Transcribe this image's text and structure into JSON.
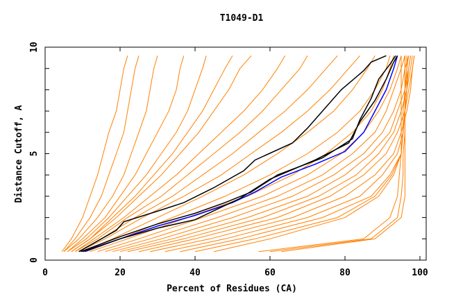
{
  "chart_data": {
    "type": "line",
    "title": "T1049-D1",
    "xlabel": "Percent of Residues (CA)",
    "ylabel": "Distance Cutoff, A",
    "xlim": [
      0,
      100
    ],
    "ylim": [
      0,
      10
    ],
    "xticks": [
      "0",
      "20",
      "40",
      "60",
      "80",
      "100"
    ],
    "yticks": [
      "0",
      "5",
      "10"
    ],
    "grid": false,
    "cutoffs": [
      0.4,
      1,
      2,
      3,
      4,
      5,
      6,
      7,
      8,
      9,
      9.6
    ],
    "background_series_color": "#ff8000",
    "background_series": [
      [
        4.5,
        7,
        10,
        12,
        14,
        15.5,
        17,
        19,
        20,
        21,
        22
      ],
      [
        5,
        8,
        12,
        15,
        17,
        19,
        21,
        22,
        23,
        24,
        25
      ],
      [
        5,
        9,
        14,
        18,
        21,
        23,
        25,
        27,
        28,
        29,
        30
      ],
      [
        6,
        10,
        16,
        20,
        24,
        27,
        30,
        33,
        35,
        36,
        37
      ],
      [
        6,
        11,
        17,
        22,
        27,
        31,
        35,
        38,
        40,
        42,
        43
      ],
      [
        7,
        12,
        18,
        24,
        29,
        34,
        38,
        42,
        45,
        48,
        50
      ],
      [
        7,
        12,
        19,
        25,
        31,
        36,
        41,
        45,
        49,
        52,
        55
      ],
      [
        8,
        13,
        21,
        28,
        35,
        41,
        47,
        53,
        58,
        62,
        64
      ],
      [
        8,
        14,
        22,
        31,
        38,
        45,
        52,
        58,
        63,
        68,
        70
      ],
      [
        9,
        15,
        24,
        34,
        42,
        50,
        57,
        64,
        70,
        75,
        78
      ],
      [
        9,
        16,
        26,
        37,
        47,
        55,
        63,
        70,
        76,
        81,
        84
      ],
      [
        10,
        18,
        30,
        42,
        53,
        62,
        70,
        77,
        82,
        86,
        88
      ],
      [
        11,
        20,
        34,
        48,
        60,
        70,
        78,
        84,
        88,
        91,
        92
      ],
      [
        12,
        22,
        38,
        54,
        66,
        75,
        82,
        87,
        90,
        92,
        93
      ],
      [
        14,
        25,
        42,
        58,
        70,
        79,
        85,
        89,
        92,
        94,
        95
      ],
      [
        16,
        28,
        46,
        62,
        74,
        82,
        88,
        91,
        93,
        95,
        96
      ],
      [
        18,
        31,
        50,
        66,
        77,
        85,
        90,
        93,
        95,
        96,
        97
      ],
      [
        20,
        34,
        54,
        70,
        80,
        87,
        92,
        94,
        96,
        97,
        97.5
      ],
      [
        22,
        37,
        58,
        73,
        83,
        89,
        93,
        95,
        96.5,
        97.5,
        98
      ],
      [
        25,
        40,
        62,
        76,
        85,
        91,
        94,
        96,
        97,
        98,
        98.5
      ],
      [
        28,
        44,
        66,
        80,
        88,
        93,
        95,
        96.5,
        97.5,
        98,
        98.5
      ],
      [
        32,
        48,
        70,
        84,
        90,
        94,
        95.5,
        96,
        96.5,
        97,
        97.5
      ],
      [
        36,
        52,
        74,
        87,
        92,
        95,
        95.5,
        96,
        96.5,
        96.5,
        97
      ],
      [
        40,
        56,
        78,
        88,
        92.5,
        95,
        95.5,
        96,
        96,
        96.5,
        96.5
      ],
      [
        45,
        60,
        80,
        89,
        93,
        95,
        95.5,
        95.5,
        96,
        96,
        96
      ],
      [
        57,
        85,
        92,
        94,
        94.5,
        95,
        95,
        95,
        95,
        95,
        95
      ],
      [
        60,
        87,
        94,
        95,
        95.5,
        95.5,
        96,
        96,
        96,
        96,
        96
      ],
      [
        63,
        88,
        95,
        96,
        96,
        96,
        96,
        96,
        96.5,
        96.5,
        96.5
      ]
    ],
    "highlight_series": [
      {
        "color": "#0000ff",
        "points": [
          [
            10.5,
            0.4
          ],
          [
            20,
            1
          ],
          [
            30,
            1.6
          ],
          [
            40,
            2.1
          ],
          [
            50,
            2.7
          ],
          [
            56,
            3.2
          ],
          [
            63,
            3.9
          ],
          [
            72,
            4.5
          ],
          [
            80,
            5.1
          ],
          [
            85,
            6
          ],
          [
            88,
            7
          ],
          [
            91,
            8
          ],
          [
            93,
            9
          ],
          [
            94,
            9.6
          ]
        ]
      },
      {
        "color": "#000000",
        "points": [
          [
            9,
            0.4
          ],
          [
            15,
            1
          ],
          [
            19,
            1.4
          ],
          [
            21,
            1.8
          ],
          [
            30,
            2.3
          ],
          [
            37,
            2.7
          ],
          [
            45,
            3.4
          ],
          [
            53,
            4.2
          ],
          [
            56,
            4.7
          ],
          [
            66,
            5.5
          ],
          [
            70,
            6.2
          ],
          [
            74,
            7
          ],
          [
            79,
            8
          ],
          [
            85,
            8.9
          ],
          [
            87,
            9.3
          ],
          [
            91,
            9.6
          ]
        ]
      },
      {
        "color": "#000000",
        "points": [
          [
            9.5,
            0.4
          ],
          [
            20,
            1.1
          ],
          [
            30,
            1.7
          ],
          [
            40,
            2.2
          ],
          [
            48,
            2.7
          ],
          [
            55,
            3.2
          ],
          [
            62,
            4
          ],
          [
            74,
            4.8
          ],
          [
            82,
            5.7
          ],
          [
            84,
            6.6
          ],
          [
            87,
            7.6
          ],
          [
            89,
            8.5
          ],
          [
            92,
            9.2
          ],
          [
            93.5,
            9.6
          ]
        ]
      },
      {
        "color": "#000000",
        "points": [
          [
            10,
            0.4
          ],
          [
            20,
            1
          ],
          [
            30,
            1.5
          ],
          [
            40,
            1.9
          ],
          [
            46,
            2.4
          ],
          [
            52,
            2.9
          ],
          [
            60,
            3.8
          ],
          [
            72,
            4.7
          ],
          [
            81,
            5.5
          ],
          [
            84,
            6.5
          ],
          [
            88,
            7.5
          ],
          [
            91,
            8.5
          ],
          [
            93,
            9.3
          ],
          [
            94,
            9.6
          ]
        ]
      }
    ]
  }
}
